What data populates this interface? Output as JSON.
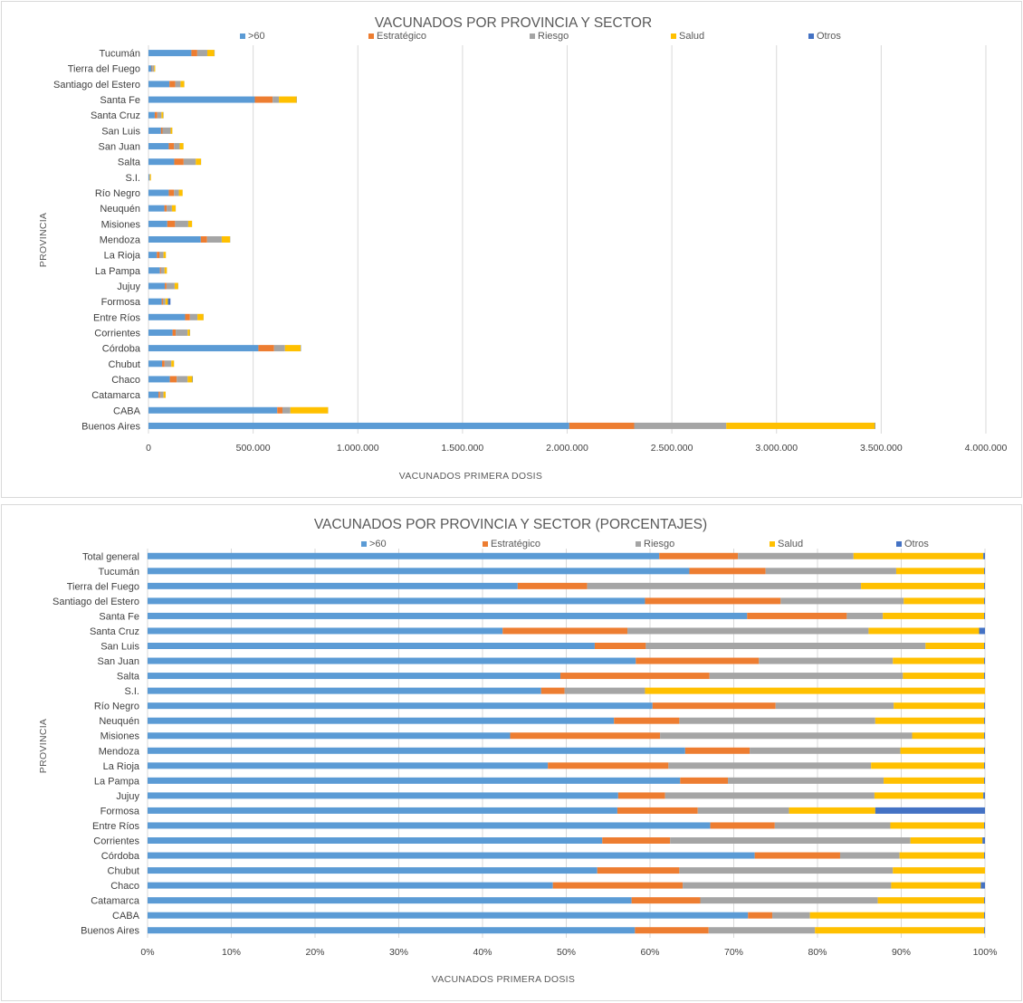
{
  "colors": {
    "s60": "#5b9bd5",
    "estrategico": "#ed7d31",
    "riesgo": "#a5a5a5",
    "salud": "#ffc000",
    "otros": "#4472c4"
  },
  "chart_data": [
    {
      "type": "bar",
      "orientation": "horizontal",
      "stacked": true,
      "title": "VACUNADOS POR PROVINCIA Y SECTOR",
      "xlabel": "VACUNADOS  PRIMERA DOSIS",
      "ylabel": "PROVINCIA",
      "xlim": [
        0,
        4000000
      ],
      "tick_values": [
        0,
        500000,
        1000000,
        1500000,
        2000000,
        2500000,
        3000000,
        3500000,
        4000000
      ],
      "tick_labels": [
        "0",
        "500.000",
        "1.000.000",
        "1.500.000",
        "2.000.000",
        "2.500.000",
        "3.000.000",
        "3.500.000",
        "4.000.000"
      ],
      "legend": [
        ">60",
        "Estratégico",
        "Riesgo",
        "Salud",
        "Otros"
      ],
      "categories": [
        "Tucumán",
        "Tierra del Fuego",
        "Santiago del Estero",
        "Santa Fe",
        "Santa Cruz",
        "San Luis",
        "San Juan",
        "Salta",
        "S.I.",
        "Río Negro",
        "Neuquén",
        "Misiones",
        "Mendoza",
        "La Rioja",
        "La Pampa",
        "Jujuy",
        "Formosa",
        "Entre Ríos",
        "Corrientes",
        "Córdoba",
        "Chubut",
        "Chaco",
        "Catamarca",
        "CABA",
        "Buenos Aires"
      ],
      "series": [
        {
          "name": ">60",
          "values": [
            205000,
            15000,
            100000,
            508000,
            30000,
            60000,
            97000,
            123000,
            4000,
            97000,
            76000,
            90000,
            250000,
            40000,
            55000,
            78000,
            63000,
            175000,
            115000,
            525000,
            65000,
            102000,
            48000,
            615000,
            2010000
          ]
        },
        {
          "name": "Estratégico",
          "values": [
            28000,
            3000,
            28000,
            85000,
            12000,
            7000,
            25000,
            45000,
            1000,
            25000,
            11000,
            37000,
            30000,
            12000,
            5000,
            8000,
            6000,
            23000,
            15000,
            75000,
            12000,
            33000,
            7000,
            25000,
            310000
          ]
        },
        {
          "name": "Riesgo",
          "values": [
            48000,
            9000,
            25000,
            30000,
            20000,
            39000,
            27000,
            58000,
            2000,
            23000,
            25000,
            63000,
            70000,
            20000,
            17000,
            39000,
            12000,
            36000,
            57000,
            52000,
            32000,
            52000,
            17000,
            38000,
            440000
          ]
        },
        {
          "name": "Salud",
          "values": [
            34000,
            5000,
            18000,
            85000,
            9000,
            8000,
            18000,
            25000,
            5000,
            18000,
            18000,
            18000,
            40000,
            11000,
            11000,
            17000,
            12000,
            29000,
            11000,
            75000,
            13000,
            23000,
            10000,
            180000,
            710000
          ]
        },
        {
          "name": "Otros",
          "values": [
            1000,
            200,
            300,
            1000,
            1000,
            200,
            300,
            400,
            0,
            200,
            200,
            300,
            700,
            200,
            100,
            500,
            12000,
            500,
            1000,
            1500,
            300,
            2000,
            200,
            500,
            2000
          ]
        }
      ]
    },
    {
      "type": "bar",
      "orientation": "horizontal",
      "stacked": true,
      "percent": true,
      "title": "VACUNADOS POR PROVINCIA Y SECTOR (PORCENTAJES)",
      "xlabel": "VACUNADOS  PRIMERA DOSIS",
      "ylabel": "PROVINCIA",
      "xlim": [
        0,
        100
      ],
      "tick_values": [
        0,
        10,
        20,
        30,
        40,
        50,
        60,
        70,
        80,
        90,
        100
      ],
      "tick_labels": [
        "0%",
        "10%",
        "20%",
        "30%",
        "40%",
        "50%",
        "60%",
        "70%",
        "80%",
        "90%",
        "100%"
      ],
      "legend": [
        ">60",
        "Estratégico",
        "Riesgo",
        "Salud",
        "Otros"
      ],
      "categories": [
        "Total general",
        "Tucumán",
        "Tierra del Fuego",
        "Santiago del Estero",
        "Santa Fe",
        "Santa Cruz",
        "San Luis",
        "San Juan",
        "Salta",
        "S.I.",
        "Río Negro",
        "Neuquén",
        "Misiones",
        "Mendoza",
        "La Rioja",
        "La Pampa",
        "Jujuy",
        "Formosa",
        "Entre Ríos",
        "Corrientes",
        "Córdoba",
        "Chubut",
        "Chaco",
        "Catamarca",
        "CABA",
        "Buenos Aires"
      ],
      "series": [
        {
          "name": ">60",
          "values": [
            61.1,
            64.7,
            44.2,
            59.4,
            71.6,
            42.4,
            53.4,
            58.3,
            49.3,
            47.0,
            60.3,
            55.7,
            43.3,
            64.2,
            47.8,
            63.6,
            56.2,
            56.1,
            67.2,
            54.3,
            72.5,
            53.7,
            48.4,
            57.8,
            71.7,
            58.2
          ]
        },
        {
          "name": "Estratégico",
          "values": [
            9.4,
            9.1,
            8.3,
            16.2,
            11.9,
            14.9,
            6.1,
            14.7,
            17.8,
            2.8,
            14.7,
            7.8,
            17.9,
            7.7,
            14.4,
            5.7,
            5.6,
            9.6,
            7.7,
            8.1,
            10.2,
            9.8,
            15.5,
            8.2,
            2.9,
            8.8
          ]
        },
        {
          "name": "Riesgo",
          "values": [
            13.8,
            15.6,
            32.7,
            14.7,
            4.3,
            28.8,
            33.4,
            16.0,
            23.1,
            9.6,
            14.1,
            23.4,
            30.1,
            18.0,
            24.2,
            18.6,
            25.0,
            10.9,
            13.8,
            28.7,
            7.1,
            25.5,
            24.9,
            21.2,
            4.5,
            12.7
          ]
        },
        {
          "name": "Salud",
          "values": [
            15.5,
            10.5,
            14.7,
            9.6,
            12.1,
            13.2,
            7.0,
            10.9,
            9.7,
            40.6,
            10.8,
            13.0,
            8.6,
            10.0,
            13.5,
            12.0,
            13.0,
            10.3,
            11.2,
            8.6,
            10.1,
            11.0,
            10.7,
            12.7,
            20.8,
            20.2
          ]
        },
        {
          "name": "Otros",
          "values": [
            0.2,
            0.1,
            0.1,
            0.1,
            0.1,
            0.7,
            0.1,
            0.1,
            0.1,
            0.0,
            0.1,
            0.1,
            0.1,
            0.1,
            0.1,
            0.1,
            0.2,
            13.1,
            0.1,
            0.3,
            0.1,
            0.0,
            0.5,
            0.1,
            0.1,
            0.1
          ]
        }
      ]
    }
  ]
}
